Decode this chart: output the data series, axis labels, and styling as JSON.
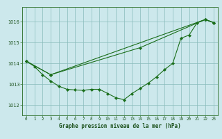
{
  "title": "Graphe pression niveau de la mer (hPa)",
  "bg_color": "#cce8ec",
  "grid_color": "#88bbbb",
  "line_color": "#1a6e1a",
  "marker_color": "#1a6e1a",
  "xlim": [
    -0.5,
    23.5
  ],
  "ylim": [
    1011.5,
    1016.7
  ],
  "yticks": [
    1012,
    1013,
    1014,
    1015,
    1016
  ],
  "xticks": [
    0,
    1,
    2,
    3,
    4,
    5,
    6,
    7,
    8,
    9,
    10,
    11,
    12,
    13,
    14,
    15,
    16,
    17,
    18,
    19,
    20,
    21,
    22,
    23
  ],
  "series1_x": [
    0,
    1,
    2,
    3,
    4,
    5,
    6,
    7,
    8,
    9,
    10,
    11,
    12,
    13,
    14,
    15,
    16,
    17,
    18,
    19,
    20,
    21,
    22,
    23
  ],
  "series1_y": [
    1014.1,
    1013.85,
    1013.45,
    1013.15,
    1012.9,
    1012.75,
    1012.72,
    1012.7,
    1012.75,
    1012.75,
    1012.55,
    1012.35,
    1012.25,
    1012.55,
    1012.8,
    1013.05,
    1013.35,
    1013.7,
    1014.0,
    1015.2,
    1015.35,
    1015.95,
    1016.1,
    1015.95
  ],
  "series2_x": [
    0,
    3,
    22,
    23
  ],
  "series2_y": [
    1014.1,
    1013.45,
    1016.1,
    1015.95
  ],
  "series3_x": [
    0,
    3,
    14,
    22,
    23
  ],
  "series3_y": [
    1014.1,
    1013.45,
    1014.75,
    1016.1,
    1015.95
  ]
}
